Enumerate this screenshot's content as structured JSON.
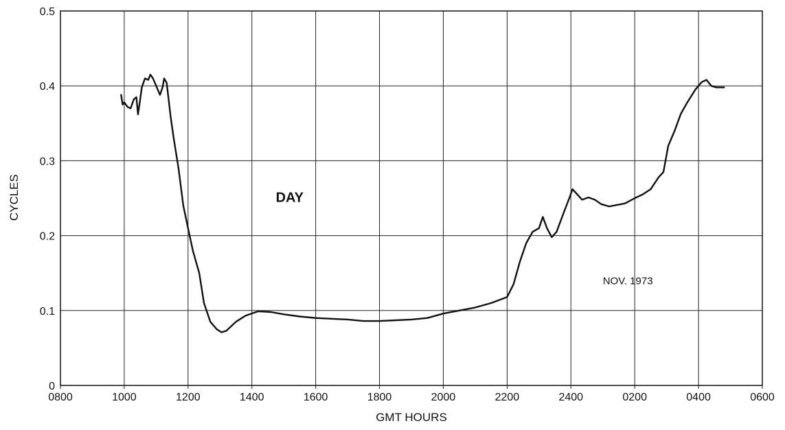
{
  "chart_data": {
    "type": "line",
    "title": "",
    "xlabel": "GMT HOURS",
    "ylabel": "CYCLES",
    "x_tick_labels": [
      "0800",
      "1000",
      "1200",
      "1400",
      "1600",
      "1800",
      "2000",
      "2200",
      "2400",
      "0200",
      "0400",
      "0600"
    ],
    "y_tick_labels": [
      "0",
      "0.1",
      "0.2",
      "0.3",
      "0.4",
      "0.5"
    ],
    "ylim": [
      0,
      0.5
    ],
    "xlim_hours": [
      8,
      30
    ],
    "grid": true,
    "annotations": [
      {
        "text": "DAY",
        "x": 14.75,
        "y": 0.245,
        "style": "big"
      },
      {
        "text": "NOV. 1973",
        "x": 25.0,
        "y": 0.135,
        "style": "small"
      }
    ],
    "series": [
      {
        "points": [
          [
            9.9,
            0.388
          ],
          [
            9.95,
            0.375
          ],
          [
            10.0,
            0.378
          ],
          [
            10.1,
            0.372
          ],
          [
            10.2,
            0.37
          ],
          [
            10.3,
            0.382
          ],
          [
            10.38,
            0.385
          ],
          [
            10.43,
            0.362
          ],
          [
            10.48,
            0.376
          ],
          [
            10.55,
            0.398
          ],
          [
            10.65,
            0.41
          ],
          [
            10.75,
            0.408
          ],
          [
            10.82,
            0.415
          ],
          [
            10.9,
            0.41
          ],
          [
            11.0,
            0.4
          ],
          [
            11.12,
            0.388
          ],
          [
            11.2,
            0.398
          ],
          [
            11.25,
            0.41
          ],
          [
            11.33,
            0.404
          ],
          [
            11.45,
            0.36
          ],
          [
            11.55,
            0.33
          ],
          [
            11.7,
            0.29
          ],
          [
            11.85,
            0.24
          ],
          [
            12.0,
            0.21
          ],
          [
            12.15,
            0.18
          ],
          [
            12.35,
            0.15
          ],
          [
            12.5,
            0.11
          ],
          [
            12.7,
            0.085
          ],
          [
            12.9,
            0.075
          ],
          [
            13.05,
            0.071
          ],
          [
            13.2,
            0.073
          ],
          [
            13.5,
            0.085
          ],
          [
            13.8,
            0.093
          ],
          [
            14.2,
            0.099
          ],
          [
            14.6,
            0.098
          ],
          [
            15.0,
            0.095
          ],
          [
            15.5,
            0.092
          ],
          [
            16.0,
            0.09
          ],
          [
            16.5,
            0.089
          ],
          [
            17.0,
            0.088
          ],
          [
            17.5,
            0.086
          ],
          [
            18.0,
            0.086
          ],
          [
            18.5,
            0.087
          ],
          [
            19.0,
            0.088
          ],
          [
            19.5,
            0.09
          ],
          [
            20.0,
            0.096
          ],
          [
            20.5,
            0.1
          ],
          [
            21.0,
            0.104
          ],
          [
            21.5,
            0.11
          ],
          [
            22.0,
            0.118
          ],
          [
            22.2,
            0.135
          ],
          [
            22.4,
            0.165
          ],
          [
            22.6,
            0.19
          ],
          [
            22.8,
            0.205
          ],
          [
            23.0,
            0.21
          ],
          [
            23.12,
            0.225
          ],
          [
            23.25,
            0.21
          ],
          [
            23.4,
            0.198
          ],
          [
            23.55,
            0.205
          ],
          [
            23.75,
            0.228
          ],
          [
            23.95,
            0.25
          ],
          [
            24.05,
            0.262
          ],
          [
            24.2,
            0.255
          ],
          [
            24.35,
            0.248
          ],
          [
            24.55,
            0.251
          ],
          [
            24.75,
            0.248
          ],
          [
            24.95,
            0.242
          ],
          [
            25.2,
            0.239
          ],
          [
            25.45,
            0.241
          ],
          [
            25.7,
            0.243
          ],
          [
            26.0,
            0.25
          ],
          [
            26.25,
            0.255
          ],
          [
            26.5,
            0.262
          ],
          [
            26.75,
            0.278
          ],
          [
            26.9,
            0.285
          ],
          [
            27.05,
            0.32
          ],
          [
            27.25,
            0.34
          ],
          [
            27.45,
            0.363
          ],
          [
            27.65,
            0.378
          ],
          [
            27.9,
            0.395
          ],
          [
            28.1,
            0.405
          ],
          [
            28.25,
            0.408
          ],
          [
            28.4,
            0.4
          ],
          [
            28.55,
            0.398
          ],
          [
            28.8,
            0.398
          ]
        ]
      }
    ]
  }
}
